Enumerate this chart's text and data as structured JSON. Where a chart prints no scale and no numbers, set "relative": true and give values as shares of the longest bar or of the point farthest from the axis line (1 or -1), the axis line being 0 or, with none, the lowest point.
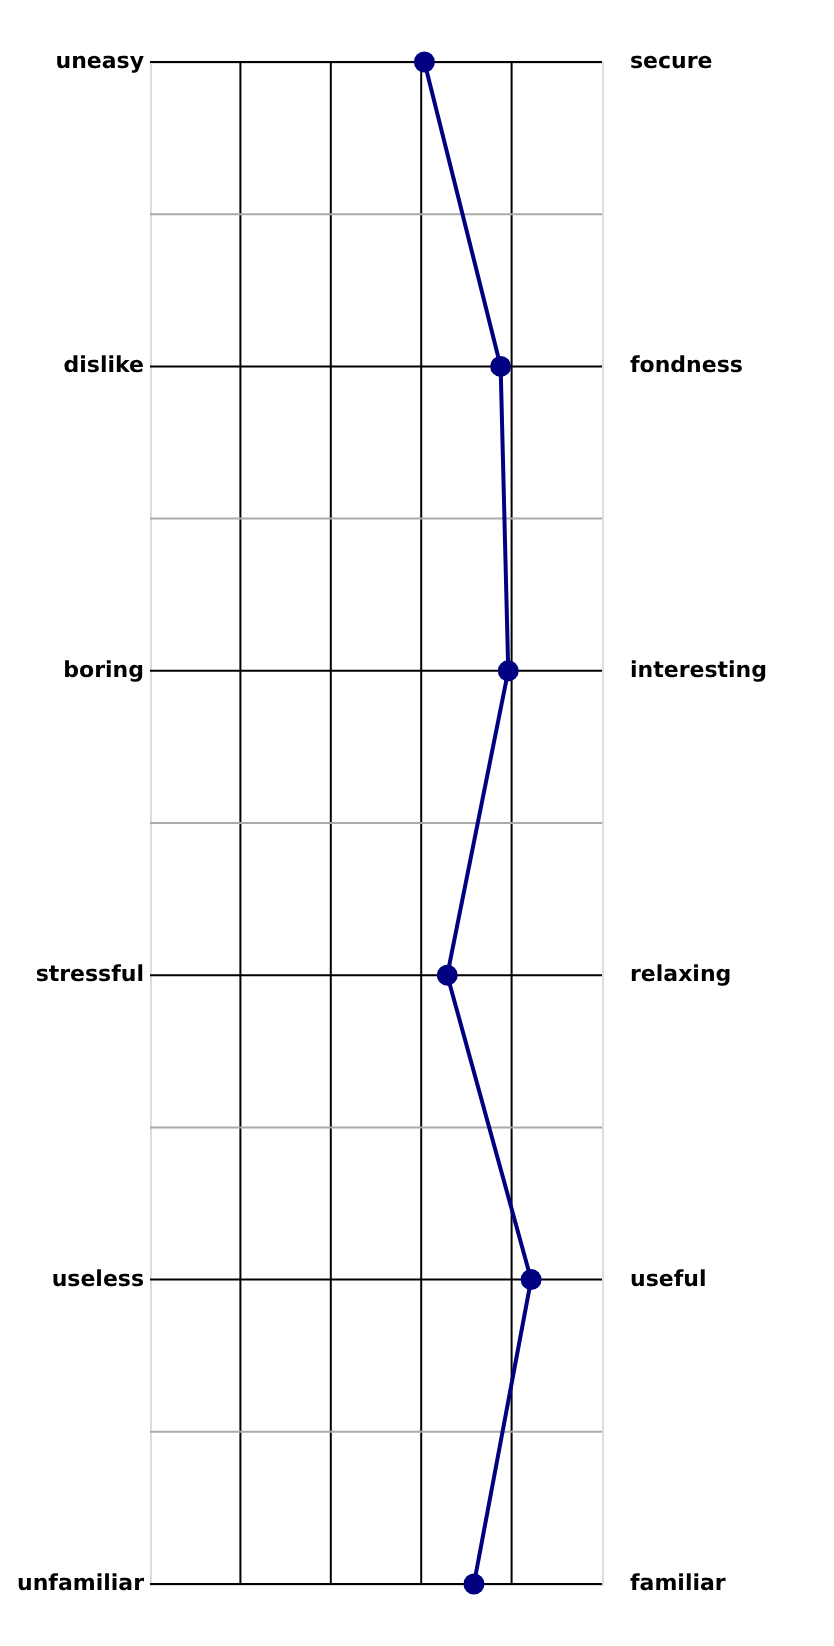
{
  "chart_data": {
    "type": "line",
    "orientation": "horizontal",
    "relative": true,
    "categories": [
      "uneasy",
      "dislike",
      "boring",
      "stressful",
      "useless",
      "unfamiliar"
    ],
    "y2_categories": [
      "secure",
      "fondness",
      "interesting",
      "relaxing",
      "useful",
      "familiar"
    ],
    "series": [
      {
        "color": "#000080",
        "values": [
          0.72,
          0.92,
          0.94,
          0.78,
          1.0,
          0.85
        ]
      }
    ],
    "marker": "circle",
    "line_style": "solid",
    "grid": true
  }
}
